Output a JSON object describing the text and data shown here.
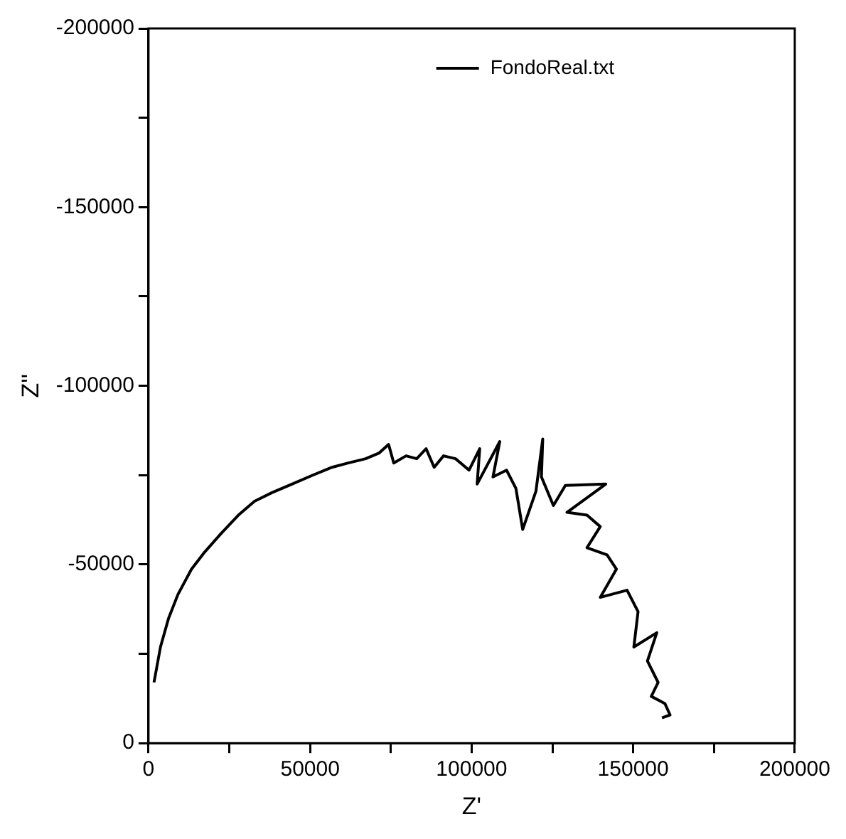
{
  "chart_data": {
    "type": "line",
    "xlabel": "Z'",
    "ylabel": "Z''",
    "xlim": [
      0,
      200000
    ],
    "xticks": [
      0,
      {
        "value": 25000,
        "label": null
      },
      50000,
      {
        "value": 75000,
        "label": null
      },
      100000,
      {
        "value": 125000,
        "label": null
      },
      150000,
      {
        "value": 175000,
        "label": null
      },
      200000
    ],
    "ylim": [
      0,
      -200000
    ],
    "yticks": [
      0,
      {
        "value": -25000,
        "label": null
      },
      -50000,
      {
        "value": -75000,
        "label": null
      },
      -100000,
      {
        "value": -125000,
        "label": null
      },
      -150000,
      {
        "value": -175000,
        "label": null
      },
      -200000
    ],
    "grid": false,
    "legend": "top right",
    "marker": "none",
    "line_style": "solid",
    "series": [
      {
        "name": "FondoReal.txt",
        "color": "#000000",
        "x": [
          1700,
          3700,
          6200,
          9100,
          13300,
          17400,
          22400,
          27800,
          32800,
          38200,
          44400,
          50600,
          56800,
          61800,
          67200,
          71400,
          74300,
          75900,
          79700,
          83000,
          85900,
          88400,
          91300,
          95000,
          99200,
          102500,
          101700,
          108700,
          106600,
          110800,
          113700,
          115800,
          119900,
          122000,
          121600,
          125300,
          129000,
          141500,
          129500,
          135700,
          139800,
          135700,
          141900,
          144800,
          139800,
          148100,
          151500,
          150200,
          157300,
          154400,
          157700,
          155600,
          159800,
          161400,
          158900
        ],
        "values": [
          -17000,
          -26900,
          -34900,
          -41600,
          -48700,
          -53500,
          -58600,
          -63800,
          -67700,
          -70100,
          -72500,
          -74900,
          -77200,
          -78400,
          -79600,
          -81200,
          -83600,
          -78400,
          -80400,
          -79600,
          -82400,
          -77200,
          -80400,
          -79600,
          -76400,
          -82400,
          -72500,
          -84400,
          -74500,
          -76400,
          -71300,
          -59800,
          -70500,
          -85100,
          -74500,
          -66500,
          -72100,
          -72500,
          -64600,
          -63800,
          -60600,
          -54700,
          -52700,
          -48700,
          -40800,
          -42800,
          -36800,
          -26900,
          -30900,
          -23000,
          -17000,
          -13100,
          -11100,
          -7900,
          -7100
        ]
      }
    ]
  }
}
